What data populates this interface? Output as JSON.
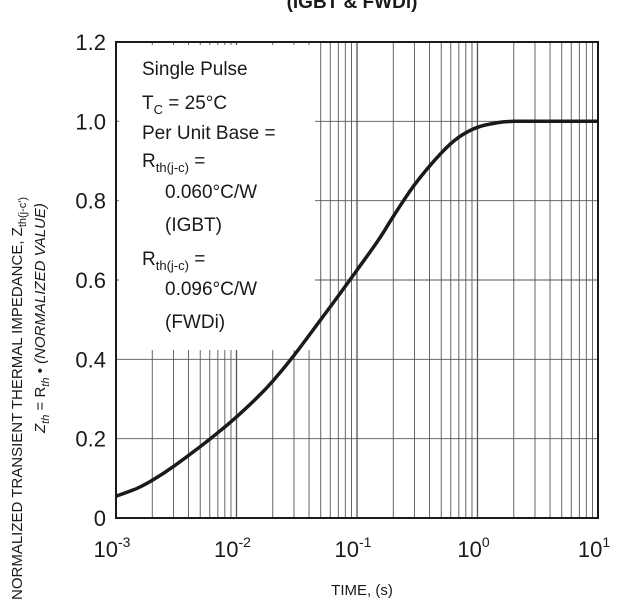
{
  "chart_data": {
    "type": "line",
    "title": "(IGBT & FWDi)",
    "xlabel": "TIME, (s)",
    "ylabel_line1": "NORMALIZED TRANSIENT THERMAL IMPEDANCE, Z",
    "ylabel_line1_sub": "th(j-c')",
    "ylabel_line2": "Z",
    "ylabel_line2_sub1": "th",
    "ylabel_line2_mid": " = R",
    "ylabel_line2_sub2": "th",
    "ylabel_line2_rest": " • (NORMALIZED VALUE)",
    "x_scale": "log",
    "xlim": [
      0.001,
      10
    ],
    "ylim": [
      0,
      1.2
    ],
    "x_ticks": [
      {
        "base": "10",
        "exp": "-3"
      },
      {
        "base": "10",
        "exp": "-2"
      },
      {
        "base": "10",
        "exp": "-1"
      },
      {
        "base": "10",
        "exp": "0"
      },
      {
        "base": "10",
        "exp": "1"
      }
    ],
    "y_ticks": [
      "0",
      "0.2",
      "0.4",
      "0.6",
      "0.8",
      "1.0",
      "1.2"
    ],
    "grid": true,
    "series": [
      {
        "x": [
          0.001,
          0.0015,
          0.002,
          0.003,
          0.005,
          0.007,
          0.01,
          0.015,
          0.02,
          0.03,
          0.05,
          0.07,
          0.1,
          0.15,
          0.2,
          0.3,
          0.5,
          0.7,
          1.0,
          1.5,
          2.0,
          3.0,
          5.0,
          10.0
        ],
        "y": [
          0.055,
          0.075,
          0.095,
          0.13,
          0.18,
          0.215,
          0.255,
          0.305,
          0.345,
          0.41,
          0.5,
          0.56,
          0.625,
          0.7,
          0.76,
          0.84,
          0.92,
          0.96,
          0.985,
          0.997,
          1.0,
          1.0,
          1.0,
          1.0
        ]
      }
    ],
    "annotation": {
      "line1": "Single Pulse",
      "line2_main": "T",
      "line2_sub": "C",
      "line2_rest": " = 25°C",
      "line3": "Per Unit Base =",
      "line4_main": "R",
      "line4_sub": "th(j-c)",
      "line4_rest": " =",
      "line5": "0.060°C/W",
      "line6": "(IGBT)",
      "line7_main": "R",
      "line7_sub": "th(j-c)",
      "line7_rest": " =",
      "line8": "0.096°C/W",
      "line9": "(FWDi)"
    }
  }
}
